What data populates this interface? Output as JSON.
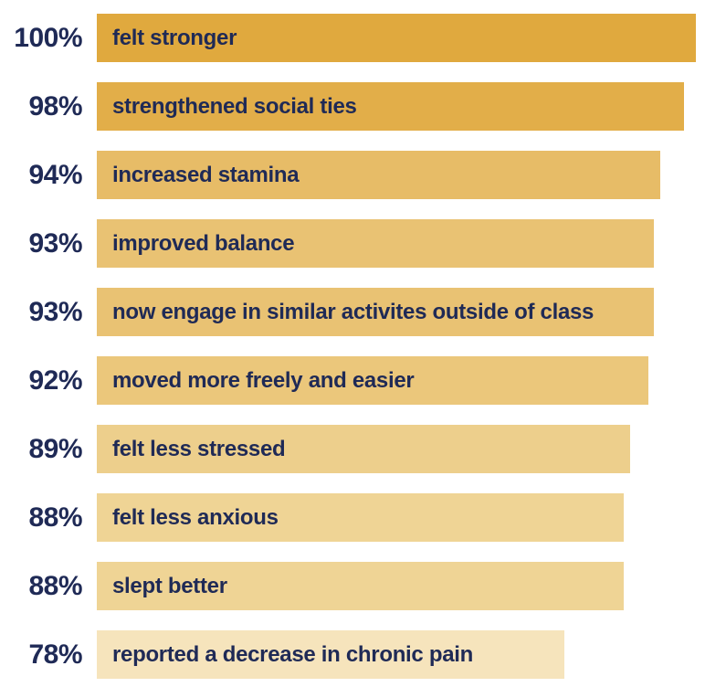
{
  "chart_data": {
    "type": "bar",
    "orientation": "horizontal",
    "title": "",
    "xlabel": "",
    "ylabel": "",
    "unit": "%",
    "xlim": [
      0,
      100
    ],
    "grid": false,
    "legend": false,
    "categories": [
      "felt stronger",
      "strengthened social ties",
      "increased stamina",
      "improved balance",
      "now engage in similar activites outside of class",
      "moved more freely and easier",
      "felt less stressed",
      "felt less anxious",
      "slept better",
      "reported a decrease in chronic pain"
    ],
    "values": [
      100,
      98,
      94,
      93,
      93,
      92,
      89,
      88,
      88,
      78
    ],
    "items": [
      {
        "pct_label": "100%",
        "value": 100,
        "label": "felt stronger",
        "color": "#E0A93E"
      },
      {
        "pct_label": "98%",
        "value": 98,
        "label": "strengthened social ties",
        "color": "#E2AE49"
      },
      {
        "pct_label": "94%",
        "value": 94,
        "label": "increased stamina",
        "color": "#E7BC67"
      },
      {
        "pct_label": "93%",
        "value": 93,
        "label": "improved balance",
        "color": "#E9C273"
      },
      {
        "pct_label": "93%",
        "value": 93,
        "label": "now engage in similar activites outside of class",
        "color": "#E9C273"
      },
      {
        "pct_label": "92%",
        "value": 92,
        "label": "moved more freely and easier",
        "color": "#EBC77B"
      },
      {
        "pct_label": "89%",
        "value": 89,
        "label": "felt less stressed",
        "color": "#EDCF8C"
      },
      {
        "pct_label": "88%",
        "value": 88,
        "label": "felt less anxious",
        "color": "#EFD495"
      },
      {
        "pct_label": "88%",
        "value": 88,
        "label": "slept better",
        "color": "#EFD495"
      },
      {
        "pct_label": "78%",
        "value": 78,
        "label": "reported a decrease in chronic pain",
        "color": "#F6E4BC"
      }
    ],
    "colors": {
      "text_navy": "#1F2A56",
      "bar_base_gold": "#E0A93E",
      "background": "#FFFFFF"
    }
  }
}
